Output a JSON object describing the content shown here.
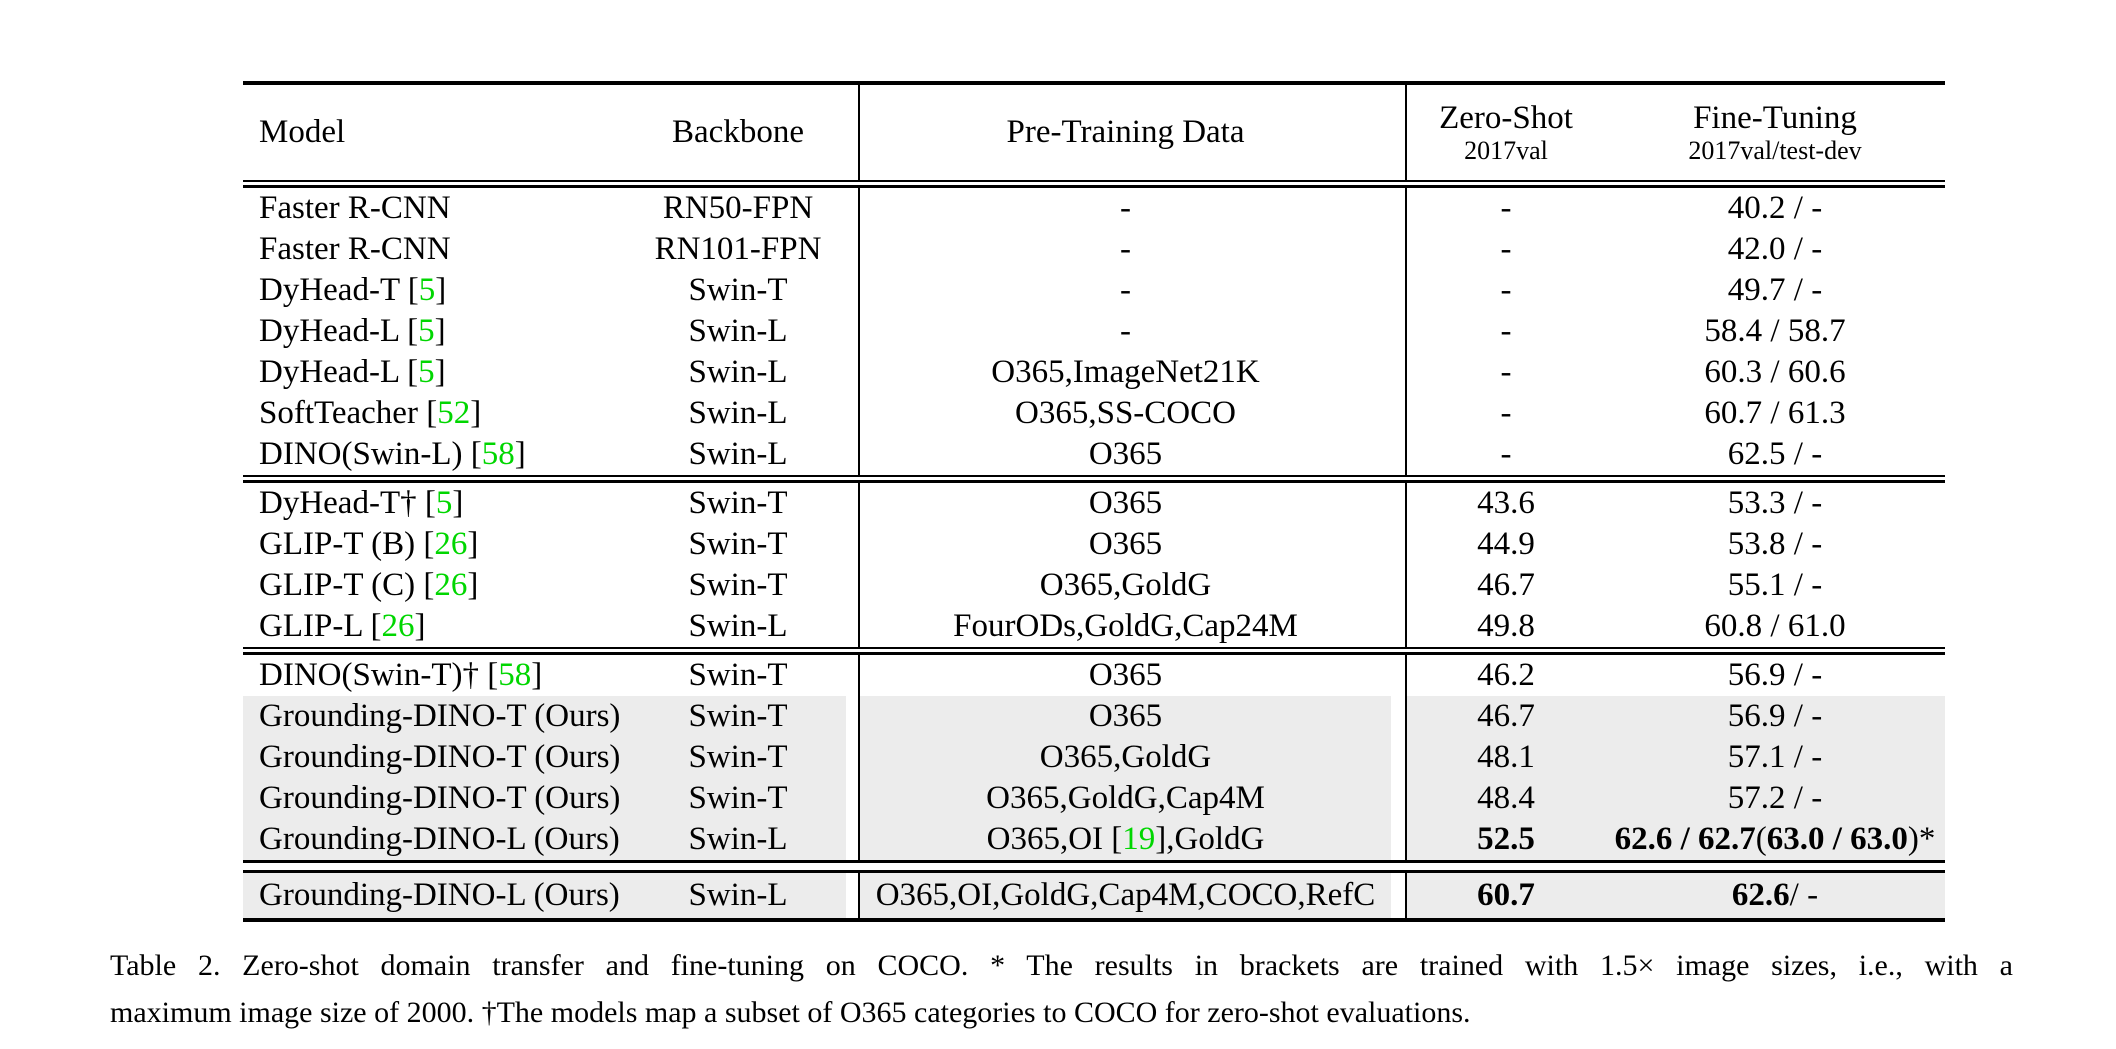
{
  "colors": {
    "citation_green": "#00D600",
    "row_highlight": "#ECECEC",
    "rule": "#000000"
  },
  "table": {
    "header": {
      "model": "Model",
      "backbone": "Backbone",
      "pretrain": "Pre-Training Data",
      "zero_shot_title": "Zero-Shot",
      "zero_shot_sub": "2017val",
      "fine_tuning_title": "Fine-Tuning",
      "fine_tuning_sub": "2017val/test-dev"
    },
    "blocks": [
      {
        "rows": [
          {
            "model": [
              {
                "t": "Faster R-CNN"
              }
            ],
            "backbone": "RN50-FPN",
            "pretrain": [
              {
                "t": "-"
              }
            ],
            "zero_shot": [
              {
                "t": "-"
              }
            ],
            "fine_tuning": [
              {
                "t": "40.2 / -"
              }
            ],
            "highlight": false
          },
          {
            "model": [
              {
                "t": "Faster R-CNN"
              }
            ],
            "backbone": "RN101-FPN",
            "pretrain": [
              {
                "t": "-"
              }
            ],
            "zero_shot": [
              {
                "t": "-"
              }
            ],
            "fine_tuning": [
              {
                "t": "42.0 / -"
              }
            ],
            "highlight": false
          },
          {
            "model": [
              {
                "t": "DyHead-T ["
              },
              {
                "t": "5",
                "g": true
              },
              {
                "t": "]"
              }
            ],
            "backbone": "Swin-T",
            "pretrain": [
              {
                "t": "-"
              }
            ],
            "zero_shot": [
              {
                "t": "-"
              }
            ],
            "fine_tuning": [
              {
                "t": "49.7 / -"
              }
            ],
            "highlight": false
          },
          {
            "model": [
              {
                "t": "DyHead-L ["
              },
              {
                "t": "5",
                "g": true
              },
              {
                "t": "]"
              }
            ],
            "backbone": "Swin-L",
            "pretrain": [
              {
                "t": "-"
              }
            ],
            "zero_shot": [
              {
                "t": "-"
              }
            ],
            "fine_tuning": [
              {
                "t": "58.4 / 58.7"
              }
            ],
            "highlight": false
          },
          {
            "model": [
              {
                "t": "DyHead-L ["
              },
              {
                "t": "5",
                "g": true
              },
              {
                "t": "]"
              }
            ],
            "backbone": "Swin-L",
            "pretrain": [
              {
                "t": "O365,ImageNet21K"
              }
            ],
            "zero_shot": [
              {
                "t": "-"
              }
            ],
            "fine_tuning": [
              {
                "t": "60.3 / 60.6"
              }
            ],
            "highlight": false
          },
          {
            "model": [
              {
                "t": "SoftTeacher ["
              },
              {
                "t": "52",
                "g": true
              },
              {
                "t": "]"
              }
            ],
            "backbone": "Swin-L",
            "pretrain": [
              {
                "t": "O365,SS-COCO"
              }
            ],
            "zero_shot": [
              {
                "t": "-"
              }
            ],
            "fine_tuning": [
              {
                "t": "60.7 / 61.3"
              }
            ],
            "highlight": false
          },
          {
            "model": [
              {
                "t": "DINO(Swin-L) ["
              },
              {
                "t": "58",
                "g": true
              },
              {
                "t": "]"
              }
            ],
            "backbone": "Swin-L",
            "pretrain": [
              {
                "t": "O365"
              }
            ],
            "zero_shot": [
              {
                "t": "-"
              }
            ],
            "fine_tuning": [
              {
                "t": "62.5 / -"
              }
            ],
            "highlight": false
          }
        ]
      },
      {
        "rows": [
          {
            "model": [
              {
                "t": "DyHead-T† ["
              },
              {
                "t": "5",
                "g": true
              },
              {
                "t": "]"
              }
            ],
            "backbone": "Swin-T",
            "pretrain": [
              {
                "t": "O365"
              }
            ],
            "zero_shot": [
              {
                "t": "43.6"
              }
            ],
            "fine_tuning": [
              {
                "t": "53.3 / -"
              }
            ],
            "highlight": false
          },
          {
            "model": [
              {
                "t": "GLIP-T (B) ["
              },
              {
                "t": "26",
                "g": true
              },
              {
                "t": "]"
              }
            ],
            "backbone": "Swin-T",
            "pretrain": [
              {
                "t": "O365"
              }
            ],
            "zero_shot": [
              {
                "t": "44.9"
              }
            ],
            "fine_tuning": [
              {
                "t": "53.8 / -"
              }
            ],
            "highlight": false
          },
          {
            "model": [
              {
                "t": "GLIP-T (C) ["
              },
              {
                "t": "26",
                "g": true
              },
              {
                "t": "]"
              }
            ],
            "backbone": "Swin-T",
            "pretrain": [
              {
                "t": "O365,GoldG"
              }
            ],
            "zero_shot": [
              {
                "t": "46.7"
              }
            ],
            "fine_tuning": [
              {
                "t": "55.1 / -"
              }
            ],
            "highlight": false
          },
          {
            "model": [
              {
                "t": "GLIP-L ["
              },
              {
                "t": "26",
                "g": true
              },
              {
                "t": "]"
              }
            ],
            "backbone": "Swin-L",
            "pretrain": [
              {
                "t": "FourODs,GoldG,Cap24M"
              }
            ],
            "zero_shot": [
              {
                "t": "49.8"
              }
            ],
            "fine_tuning": [
              {
                "t": "60.8 / 61.0"
              }
            ],
            "highlight": false
          }
        ]
      },
      {
        "rows": [
          {
            "model": [
              {
                "t": "DINO(Swin-T)† ["
              },
              {
                "t": "58",
                "g": true
              },
              {
                "t": "]"
              }
            ],
            "backbone": "Swin-T",
            "pretrain": [
              {
                "t": "O365"
              }
            ],
            "zero_shot": [
              {
                "t": "46.2"
              }
            ],
            "fine_tuning": [
              {
                "t": "56.9 / -"
              }
            ],
            "highlight": false
          },
          {
            "model": [
              {
                "t": "Grounding-DINO-T (Ours)"
              }
            ],
            "backbone": "Swin-T",
            "pretrain": [
              {
                "t": "O365"
              }
            ],
            "zero_shot": [
              {
                "t": "46.7"
              }
            ],
            "fine_tuning": [
              {
                "t": "56.9 / -"
              }
            ],
            "highlight": true
          },
          {
            "model": [
              {
                "t": "Grounding-DINO-T (Ours)"
              }
            ],
            "backbone": "Swin-T",
            "pretrain": [
              {
                "t": "O365,GoldG"
              }
            ],
            "zero_shot": [
              {
                "t": "48.1"
              }
            ],
            "fine_tuning": [
              {
                "t": "57.1 / -"
              }
            ],
            "highlight": true
          },
          {
            "model": [
              {
                "t": "Grounding-DINO-T (Ours)"
              }
            ],
            "backbone": "Swin-T",
            "pretrain": [
              {
                "t": "O365,GoldG,Cap4M"
              }
            ],
            "zero_shot": [
              {
                "t": "48.4"
              }
            ],
            "fine_tuning": [
              {
                "t": "57.2 / -"
              }
            ],
            "highlight": true
          },
          {
            "model": [
              {
                "t": "Grounding-DINO-L (Ours)"
              }
            ],
            "backbone": "Swin-L",
            "pretrain": [
              {
                "t": "O365,OI ["
              },
              {
                "t": "19",
                "g": true
              },
              {
                "t": "],GoldG"
              }
            ],
            "zero_shot": [
              {
                "t": "52.5",
                "b": true
              }
            ],
            "fine_tuning": [
              {
                "t": "62.6 / 62.7",
                "b": true
              },
              {
                "t": " ("
              },
              {
                "t": "63.0 / 63.0",
                "b": true
              },
              {
                "t": ")*"
              }
            ],
            "highlight": true
          }
        ]
      },
      {
        "rows": [
          {
            "model": [
              {
                "t": "Grounding-DINO-L (Ours)"
              }
            ],
            "backbone": "Swin-L",
            "pretrain": [
              {
                "t": "O365,OI,GoldG,Cap4M,COCO,RefC"
              }
            ],
            "zero_shot": [
              {
                "t": "60.7",
                "b": true
              }
            ],
            "fine_tuning": [
              {
                "t": "62.6",
                "b": true
              },
              {
                "t": " / -"
              }
            ],
            "highlight": true
          }
        ]
      }
    ]
  },
  "caption": {
    "line1": "Table 2.  Zero-shot domain transfer and fine-tuning on COCO. * The results in brackets are trained with 1.5× image sizes, i.e., with a",
    "line2": "maximum image size of 2000. †The models map a subset of O365 categories to COCO for zero-shot evaluations."
  }
}
